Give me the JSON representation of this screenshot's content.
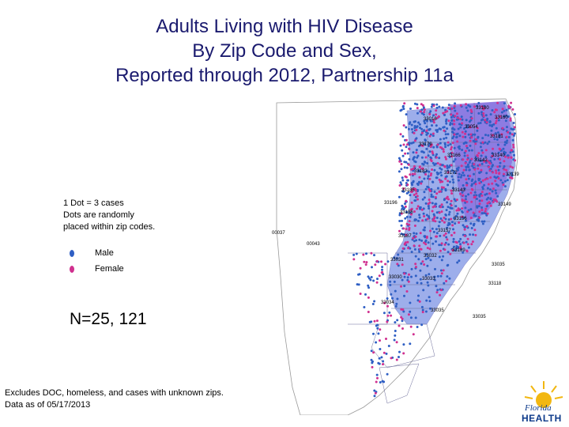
{
  "title": {
    "line1": "Adults Living with HIV Disease",
    "line2": "By Zip Code and Sex,",
    "line3": "Reported through 2012, Partnership 11a"
  },
  "legend": {
    "note_line1": "1 Dot = 3 cases",
    "note_line2": "Dots are randomly",
    "note_line3": "placed within zip codes.",
    "male_label": "Male",
    "female_label": "Female",
    "male_color": "#2f5fc4",
    "female_color": "#d0308f"
  },
  "count": "N=25, 121",
  "footer": {
    "line1": "Excludes DOC, homeless, and cases with unknown zips.",
    "line2": "Data as of 05/17/2013"
  },
  "logo": {
    "line1": "Florida",
    "line2": "HEALTH"
  },
  "zip_labels": [
    "33180",
    "33016",
    "33160",
    "33054",
    "33181",
    "33179",
    "33166",
    "33140",
    "33142",
    "33182",
    "33172",
    "33139",
    "33185",
    "33143",
    "33196",
    "33149",
    "33186",
    "33156",
    "00037",
    "33187",
    "33157",
    "00043",
    "33189",
    "33031",
    "33032",
    "33035",
    "33030",
    "33033",
    "33034",
    "33035",
    "33035",
    "33118"
  ]
}
